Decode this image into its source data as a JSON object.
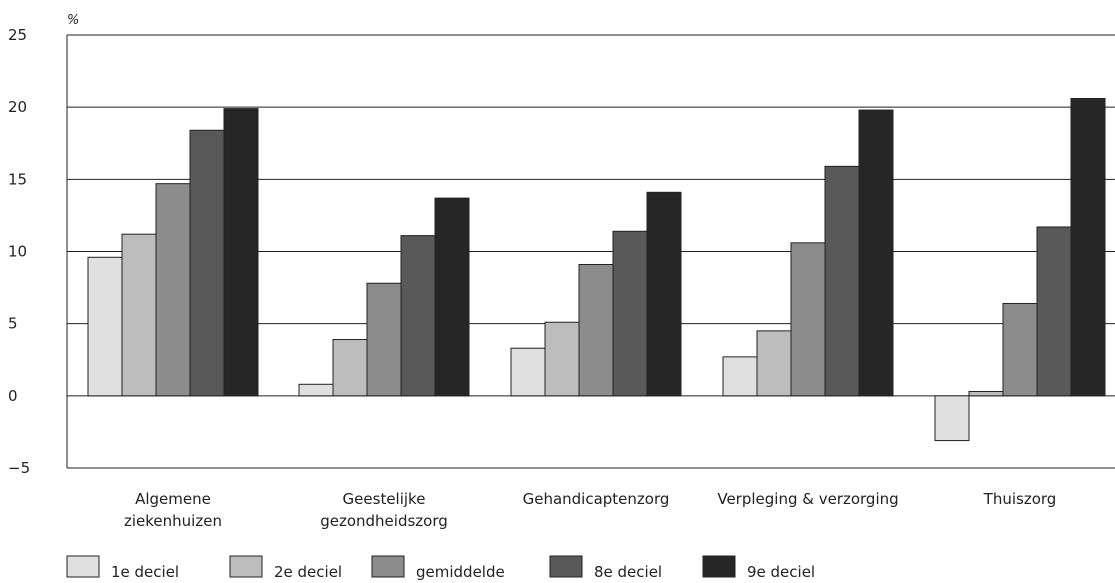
{
  "chart_data": {
    "type": "bar",
    "unit_label": "%",
    "ylim": [
      -5,
      25
    ],
    "yticks": [
      -5,
      0,
      5,
      10,
      15,
      20,
      25
    ],
    "ytick_labels": [
      "−5",
      "0",
      "5",
      "10",
      "15",
      "20",
      "25"
    ],
    "grid": "horizontal",
    "legend_position": "bottom",
    "categories": [
      [
        "Algemene",
        "ziekenhuizen"
      ],
      [
        "Geestelijke",
        "gezondheidszorg"
      ],
      [
        "Gehandicaptenzorg"
      ],
      [
        "Verpleging & verzorging"
      ],
      [
        "Thuiszorg"
      ]
    ],
    "series": [
      {
        "name": "1e deciel",
        "color": "#e0e0e0",
        "values": [
          9.6,
          0.8,
          3.3,
          2.7,
          -3.1
        ]
      },
      {
        "name": "2e deciel",
        "color": "#bdbdbd",
        "values": [
          11.2,
          3.9,
          5.1,
          4.5,
          0.3
        ]
      },
      {
        "name": "gemiddelde",
        "color": "#8c8c8c",
        "values": [
          14.7,
          7.8,
          9.1,
          10.6,
          6.4
        ]
      },
      {
        "name": "8e deciel",
        "color": "#595959",
        "values": [
          18.4,
          11.1,
          11.4,
          15.9,
          11.7
        ]
      },
      {
        "name": "9e deciel",
        "color": "#262626",
        "values": [
          19.9,
          13.7,
          14.1,
          19.8,
          20.6
        ]
      }
    ]
  }
}
